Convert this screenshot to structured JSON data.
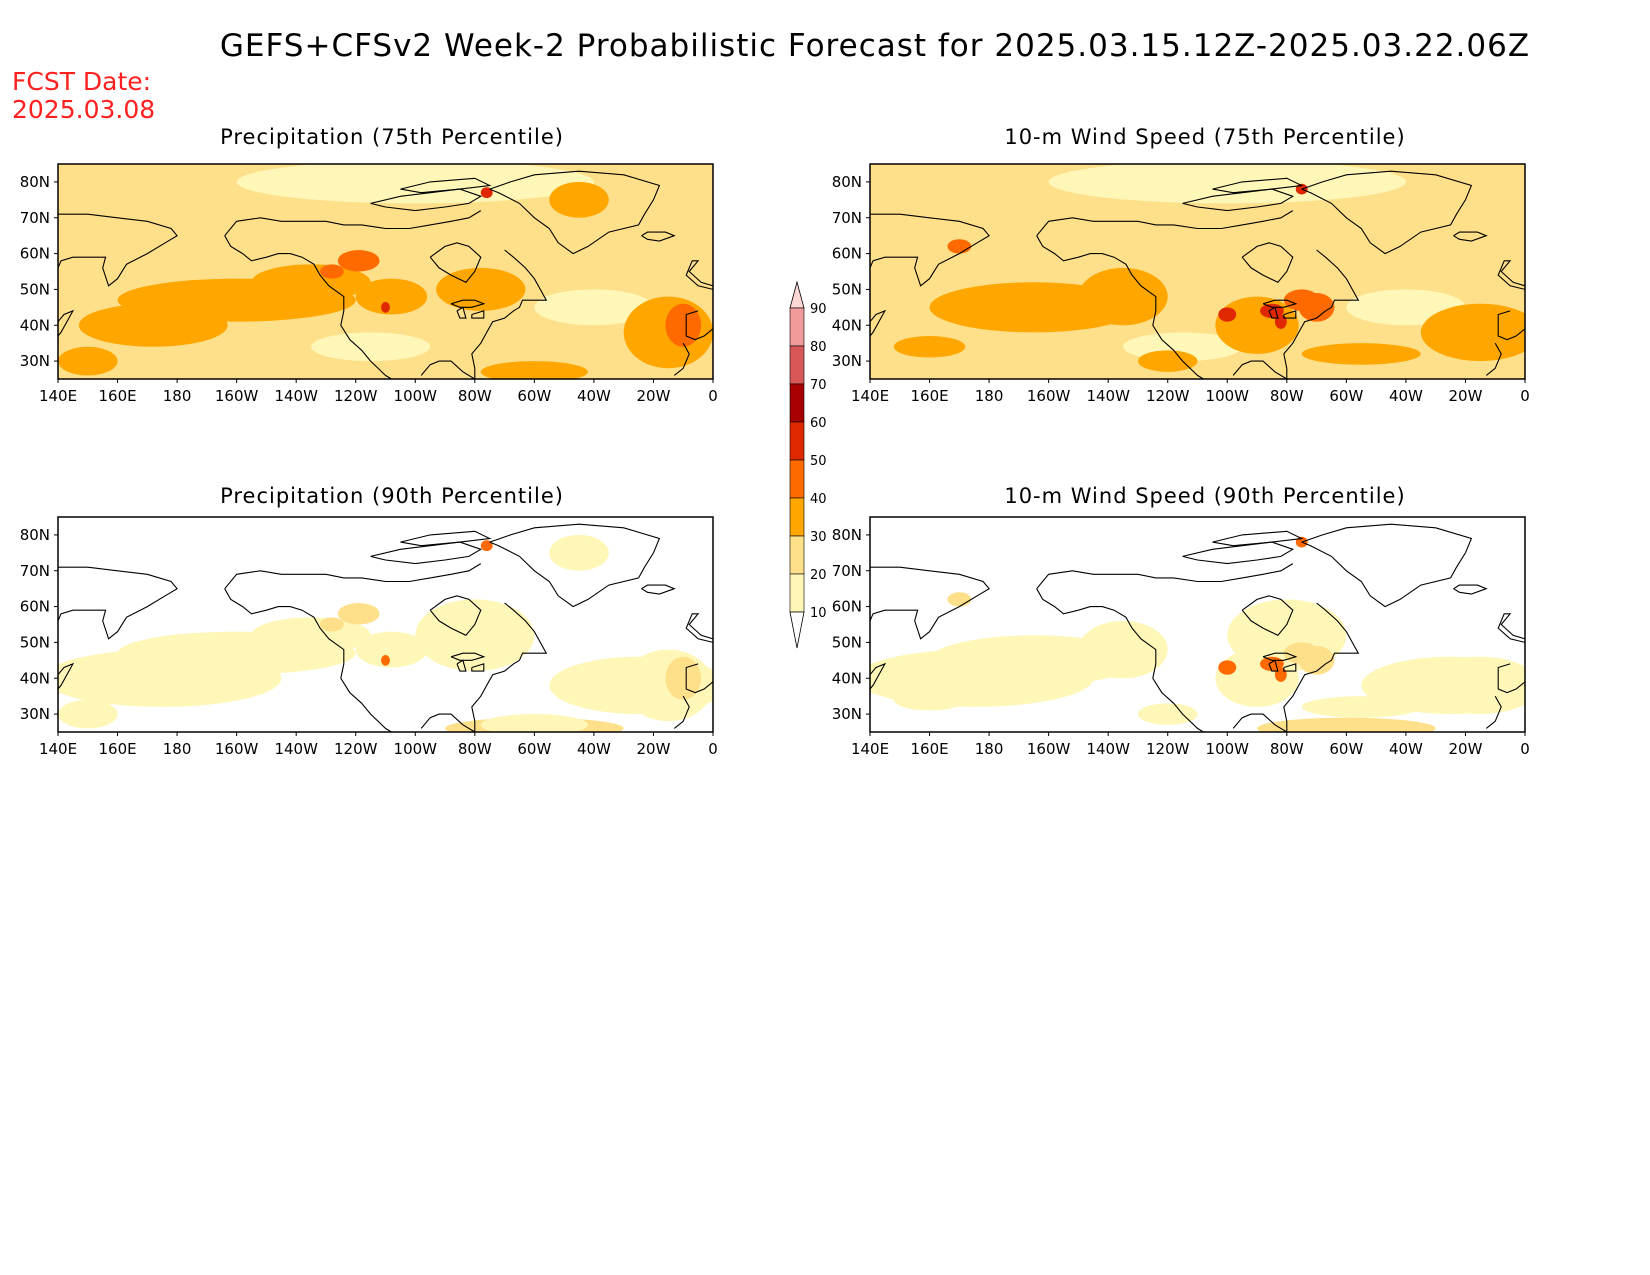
{
  "header": {
    "title": "GEFS+CFSv2 Week-2 Probabilistic Forecast for 2025.03.15.12Z-2025.03.22.06Z",
    "fcst_date_label": "FCST Date:",
    "fcst_date_value": "2025.03.08"
  },
  "axes": {
    "x_ticks": [
      "140E",
      "160E",
      "180",
      "160W",
      "140W",
      "120W",
      "100W",
      "80W",
      "60W",
      "40W",
      "20W",
      "0"
    ],
    "y_ticks": [
      "80N",
      "70N",
      "60N",
      "50N",
      "40N",
      "30N"
    ],
    "lon_range": [
      140,
      360
    ],
    "lat_range": [
      25,
      85
    ]
  },
  "panels": [
    {
      "id": "precip-75",
      "title": "Precipitation (75th Percentile)",
      "intensity": "high",
      "field": "precip"
    },
    {
      "id": "wind-75",
      "title": "10-m Wind Speed (75th Percentile)",
      "intensity": "high",
      "field": "wind"
    },
    {
      "id": "precip-90",
      "title": "Precipitation (90th Percentile)",
      "intensity": "low",
      "field": "precip"
    },
    {
      "id": "wind-90",
      "title": "10-m Wind Speed (90th Percentile)",
      "intensity": "low",
      "field": "wind"
    }
  ],
  "colorbar": {
    "levels": [
      "10",
      "20",
      "30",
      "40",
      "50",
      "60",
      "70",
      "80",
      "90"
    ],
    "colors": [
      "#fff7b8",
      "#ffe08a",
      "#ffa600",
      "#ff6a00",
      "#e02800",
      "#a80000",
      "#d85858",
      "#f09a9a",
      "#ffd6d6"
    ]
  }
}
